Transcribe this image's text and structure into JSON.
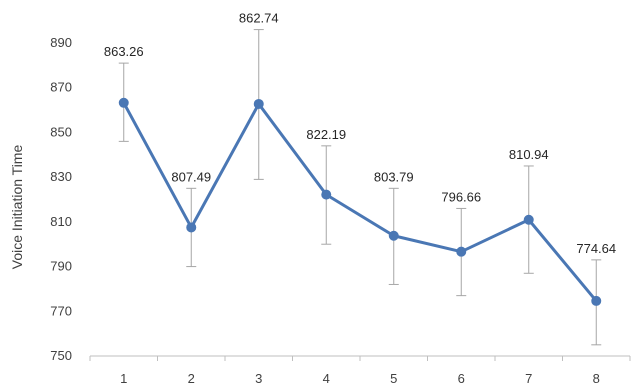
{
  "chart_data": {
    "type": "line",
    "title": "",
    "xlabel": "",
    "ylabel": "Voice Initiation Time",
    "x": [
      "1",
      "2",
      "3",
      "4",
      "5",
      "6",
      "7",
      "8"
    ],
    "series": [
      {
        "values": [
          863.26,
          807.49,
          862.74,
          822.19,
          803.79,
          796.66,
          810.94,
          774.64
        ],
        "labels": [
          "863.26",
          "807.49",
          "862.74",
          "822.19",
          "803.79",
          "796.66",
          "810.94",
          "774.64"
        ],
        "error_upper": [
          881,
          825,
          896,
          844,
          825,
          816,
          835,
          793
        ],
        "error_lower": [
          846,
          790,
          829,
          800,
          782,
          777,
          787,
          755
        ],
        "color": "#4a77b4"
      }
    ],
    "yticks": [
      "750",
      "770",
      "790",
      "810",
      "830",
      "850",
      "870",
      "890"
    ],
    "ylim": [
      750,
      890
    ],
    "grid": false,
    "legend": "none",
    "colors": {
      "line": "#4a77b4",
      "errorbar": "#a6a6a6",
      "axis": "#bfbfbf",
      "text": "#404040"
    }
  }
}
